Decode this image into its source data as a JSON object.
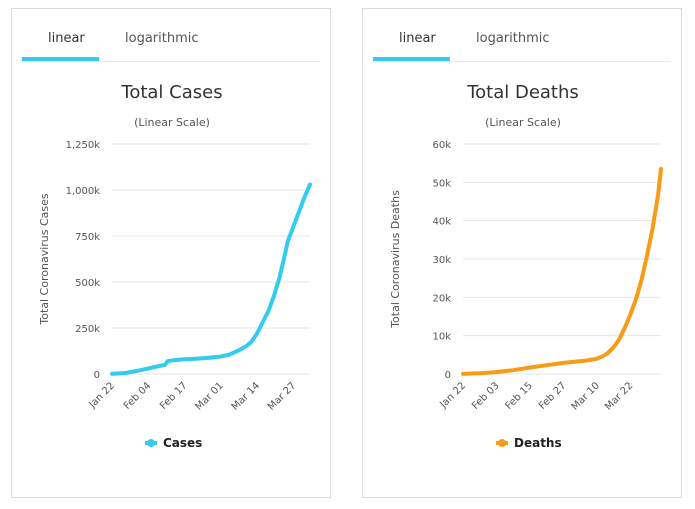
{
  "tabs": {
    "linear": "linear",
    "logarithmic": "logarithmic"
  },
  "colors": {
    "cases": "#33ccee",
    "deaths": "#f89b16",
    "tab_active": "#33ccee"
  },
  "chart_data": [
    {
      "type": "line",
      "title": "Total Cases",
      "subtitle": "(Linear Scale)",
      "ylabel": "Total Coronavirus Cases",
      "ylim": [
        0,
        1250000
      ],
      "yticks": [
        0,
        250000,
        500000,
        750000,
        1000000,
        1250000
      ],
      "ytick_labels": [
        "0",
        "250k",
        "500k",
        "750k",
        "1,000k",
        "1,250k"
      ],
      "x_tick_labels": [
        "Jan 22",
        "Feb 04",
        "Feb 17",
        "Mar 01",
        "Mar 14",
        "Mar 27"
      ],
      "x_tick_index": [
        0,
        13,
        26,
        39,
        52,
        65
      ],
      "x_count": 72,
      "legend": "Cases",
      "legend_position": "bottom",
      "grid": true,
      "series": [
        {
          "name": "Cases",
          "x": [
            0,
            5,
            10,
            13,
            16,
            19,
            20,
            22,
            26,
            30,
            34,
            39,
            42,
            45,
            48,
            50,
            52,
            54,
            56,
            58,
            60,
            62,
            63,
            65,
            67,
            69,
            71
          ],
          "values": [
            550,
            6000,
            20000,
            30000,
            40000,
            50000,
            70000,
            75000,
            80000,
            83000,
            87000,
            95000,
            105000,
            125000,
            150000,
            175000,
            220000,
            280000,
            340000,
            420000,
            520000,
            650000,
            720000,
            800000,
            880000,
            960000,
            1030000
          ]
        }
      ]
    },
    {
      "type": "line",
      "title": "Total Deaths",
      "subtitle": "(Linear Scale)",
      "ylabel": "Total Coronavirus Deaths",
      "ylim": [
        0,
        60000
      ],
      "yticks": [
        0,
        10000,
        20000,
        30000,
        40000,
        50000,
        60000
      ],
      "ytick_labels": [
        "0",
        "10k",
        "20k",
        "30k",
        "40k",
        "50k",
        "60k"
      ],
      "x_tick_labels": [
        "Jan 22",
        "Feb 03",
        "Feb 15",
        "Feb 27",
        "Mar 10",
        "Mar 22"
      ],
      "x_tick_index": [
        0,
        12,
        24,
        36,
        48,
        60
      ],
      "x_count": 72,
      "legend": "Deaths",
      "legend_position": "bottom",
      "grid": true,
      "series": [
        {
          "name": "Deaths",
          "x": [
            0,
            6,
            12,
            18,
            24,
            30,
            36,
            40,
            44,
            48,
            50,
            52,
            54,
            56,
            58,
            60,
            62,
            64,
            66,
            68,
            70,
            71
          ],
          "values": [
            17,
            200,
            500,
            1000,
            1700,
            2300,
            2900,
            3200,
            3500,
            4000,
            4600,
            5500,
            7000,
            9000,
            12000,
            15500,
            19500,
            24500,
            31000,
            38000,
            47000,
            53500
          ]
        }
      ]
    }
  ]
}
